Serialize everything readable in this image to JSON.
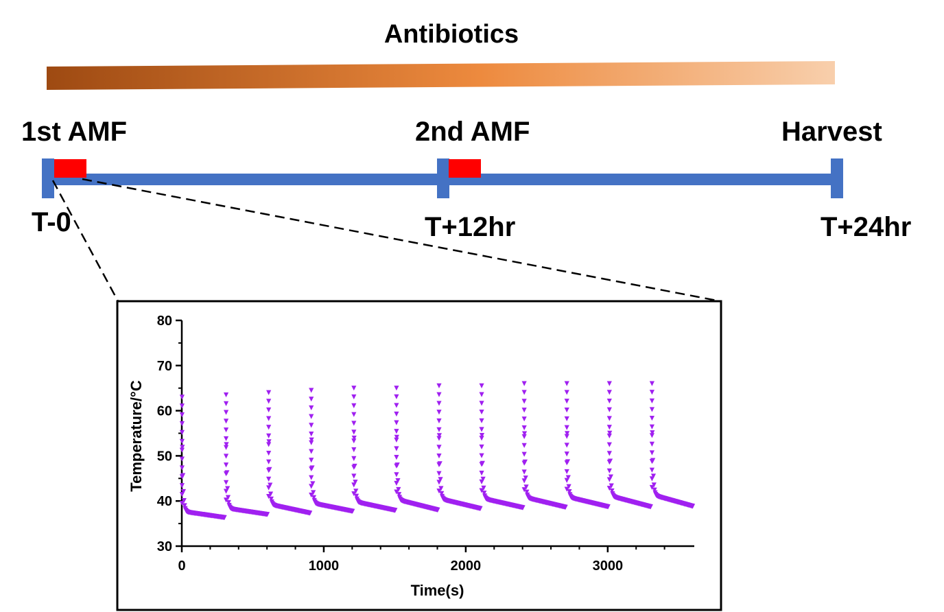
{
  "title": "Antibiotics",
  "timeline": {
    "events": [
      {
        "label": "1st AMF",
        "time_label": "T-0"
      },
      {
        "label": "2nd AMF",
        "time_label": "T+12hr"
      },
      {
        "label": "Harvest",
        "time_label": "T+24hr"
      }
    ]
  },
  "colors": {
    "timeline": "#4472c4",
    "amf_block": "#ff0000",
    "gradient_start": "#9e4a12",
    "gradient_mid": "#ed8a3e",
    "gradient_end": "#f8cfac",
    "series": "#a020f0"
  },
  "chart_data": {
    "type": "scatter",
    "xlabel": "Time(s)",
    "ylabel": "Temperature/°C",
    "xlim": [
      0,
      3600
    ],
    "ylim": [
      30,
      80
    ],
    "xticks": [
      0,
      1000,
      2000,
      3000
    ],
    "yticks": [
      30,
      40,
      50,
      60,
      70,
      80
    ],
    "cycles": [
      {
        "start": 0,
        "peak": 63,
        "plateau": 37.5,
        "end": 36.3
      },
      {
        "start": 310,
        "peak": 63.5,
        "plateau": 38.2,
        "end": 37.0
      },
      {
        "start": 610,
        "peak": 64,
        "plateau": 39.0,
        "end": 37.3
      },
      {
        "start": 910,
        "peak": 64.5,
        "plateau": 39.3,
        "end": 37.7
      },
      {
        "start": 1210,
        "peak": 65,
        "plateau": 39.6,
        "end": 37.9
      },
      {
        "start": 1510,
        "peak": 65,
        "plateau": 40.0,
        "end": 38.0
      },
      {
        "start": 1810,
        "peak": 65.5,
        "plateau": 40.2,
        "end": 38.3
      },
      {
        "start": 2110,
        "peak": 65.5,
        "plateau": 40.3,
        "end": 38.5
      },
      {
        "start": 2410,
        "peak": 66,
        "plateau": 40.5,
        "end": 38.6
      },
      {
        "start": 2710,
        "peak": 66,
        "plateau": 40.6,
        "end": 38.7
      },
      {
        "start": 3010,
        "peak": 66,
        "plateau": 40.8,
        "end": 38.7
      },
      {
        "start": 3310,
        "peak": 66,
        "plateau": 41.0,
        "end": 38.8
      }
    ],
    "cycle_end": 3600
  }
}
